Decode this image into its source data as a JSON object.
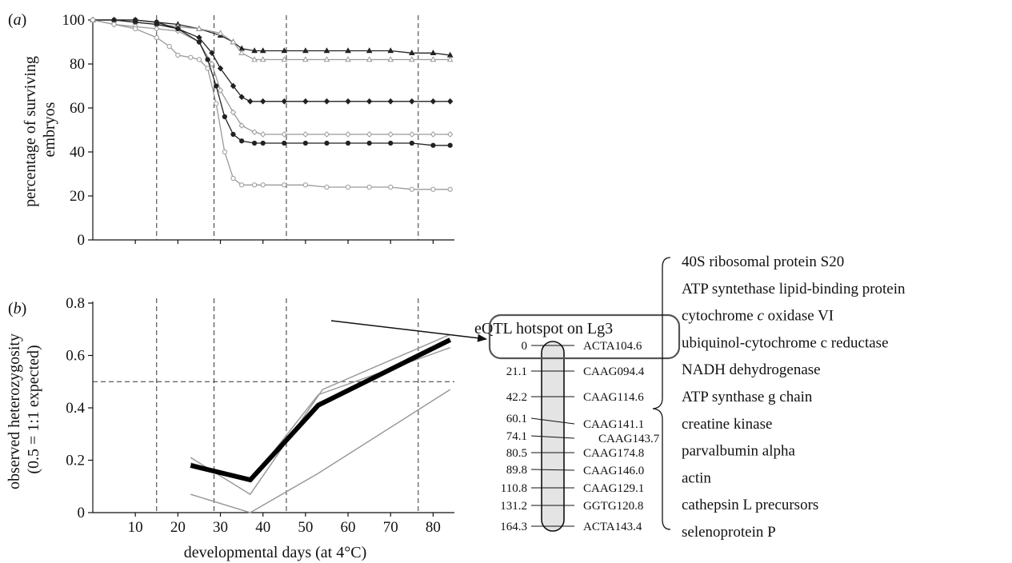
{
  "colors": {
    "axis": "#111111",
    "dark_series": "#222222",
    "light_series": "#9a9a9a",
    "grid": "#333333",
    "chromosome_fill": "#e4e4e4"
  },
  "chart_data": [
    {
      "id": "a",
      "panel_label": "(a)",
      "type": "line",
      "xlabel": "",
      "ylabel": "percentage of surviving embryos",
      "ylabel_lines": [
        "percentage of surviving",
        "embryos"
      ],
      "xlim": [
        0,
        85
      ],
      "ylim": [
        0,
        100
      ],
      "yticks": [
        "0",
        "20",
        "40",
        "60",
        "80",
        "100"
      ],
      "vlines": [
        15,
        28.5,
        45.5,
        76.5
      ],
      "grid": false,
      "series": [
        {
          "marker": "filled-triangle",
          "color": "dark",
          "x": [
            0,
            5,
            10,
            15,
            20,
            25,
            30,
            33,
            35,
            38,
            40,
            45,
            50,
            55,
            60,
            65,
            70,
            75,
            80,
            84
          ],
          "y": [
            100,
            100,
            100,
            99,
            98,
            96,
            93,
            90,
            87,
            86,
            86,
            86,
            86,
            86,
            86,
            86,
            86,
            85,
            85,
            84
          ]
        },
        {
          "marker": "open-triangle",
          "color": "light",
          "x": [
            0,
            5,
            10,
            15,
            20,
            25,
            30,
            33,
            35,
            38,
            40,
            45,
            50,
            55,
            60,
            65,
            70,
            75,
            80,
            84
          ],
          "y": [
            100,
            100,
            99,
            98,
            97,
            96,
            94,
            90,
            85,
            82,
            82,
            82,
            82,
            82,
            82,
            82,
            82,
            82,
            82,
            82
          ]
        },
        {
          "marker": "filled-diamond",
          "color": "dark",
          "x": [
            0,
            5,
            10,
            15,
            20,
            25,
            28,
            30,
            33,
            35,
            37,
            40,
            45,
            50,
            55,
            60,
            65,
            70,
            75,
            80,
            84
          ],
          "y": [
            100,
            100,
            99,
            98,
            96,
            92,
            85,
            78,
            70,
            65,
            63,
            63,
            63,
            63,
            63,
            63,
            63,
            63,
            63,
            63,
            63
          ]
        },
        {
          "marker": "open-diamond",
          "color": "light",
          "x": [
            0,
            5,
            10,
            15,
            20,
            25,
            28,
            30,
            33,
            35,
            38,
            40,
            45,
            50,
            55,
            60,
            65,
            70,
            75,
            80,
            84
          ],
          "y": [
            100,
            98,
            97,
            96,
            95,
            90,
            80,
            68,
            58,
            52,
            49,
            48,
            48,
            48,
            48,
            48,
            48,
            48,
            48,
            48,
            48
          ]
        },
        {
          "marker": "filled-circle",
          "color": "dark",
          "x": [
            0,
            5,
            10,
            15,
            20,
            25,
            27,
            29,
            31,
            33,
            35,
            38,
            40,
            45,
            50,
            55,
            60,
            65,
            70,
            75,
            80,
            84
          ],
          "y": [
            100,
            100,
            100,
            99,
            96,
            90,
            82,
            70,
            56,
            48,
            45,
            44,
            44,
            44,
            44,
            44,
            44,
            44,
            44,
            44,
            43,
            43
          ]
        },
        {
          "marker": "open-circle",
          "color": "light",
          "x": [
            0,
            5,
            10,
            15,
            18,
            20,
            23,
            25,
            27,
            29,
            31,
            33,
            35,
            38,
            40,
            45,
            50,
            55,
            60,
            65,
            70,
            75,
            80,
            84
          ],
          "y": [
            100,
            98,
            96,
            92,
            88,
            84,
            83,
            82,
            78,
            62,
            40,
            28,
            25,
            25,
            25,
            25,
            25,
            24,
            24,
            24,
            24,
            23,
            23,
            23
          ]
        }
      ]
    },
    {
      "id": "b",
      "panel_label": "(b)",
      "type": "line",
      "xlabel": "developmental days (at 4°C)",
      "ylabel": "observed heterozygosity (0.5 = 1:1 expected)",
      "ylabel_lines": [
        "observed heterozygosity",
        "(0.5 = 1:1 expected)"
      ],
      "xlim": [
        0,
        85
      ],
      "ylim": [
        0,
        0.8
      ],
      "xticks": [
        "10",
        "20",
        "30",
        "40",
        "50",
        "60",
        "70",
        "80"
      ],
      "yticks": [
        "0",
        "0.2",
        "0.4",
        "0.6",
        "0.8"
      ],
      "vlines": [
        15,
        28.5,
        45.5,
        76.5
      ],
      "hline": 0.5,
      "grid": false,
      "series": [
        {
          "style": "thin-grey",
          "x": [
            23,
            37,
            54,
            84
          ],
          "y": [
            0.21,
            0.07,
            0.47,
            0.68
          ]
        },
        {
          "style": "thin-grey",
          "x": [
            23,
            37,
            53,
            84
          ],
          "y": [
            0.19,
            0.12,
            0.45,
            0.63
          ]
        },
        {
          "style": "thin-grey",
          "x": [
            23,
            37,
            53,
            84
          ],
          "y": [
            0.07,
            0.0,
            0.15,
            0.47
          ]
        },
        {
          "style": "bold-black",
          "x": [
            23,
            37,
            53,
            84
          ],
          "y": [
            0.18,
            0.125,
            0.41,
            0.66
          ]
        }
      ]
    }
  ],
  "eqtl": {
    "title": "eQTL hotspot on Lg3",
    "markers": [
      {
        "pos": "0",
        "name": "ACTA104.6"
      },
      {
        "pos": "21.1",
        "name": "CAAG094.4"
      },
      {
        "pos": "42.2",
        "name": "CAAG114.6"
      },
      {
        "pos": "60.1",
        "name": "CAAG141.1"
      },
      {
        "pos": "74.1",
        "name": "CAAG143.7"
      },
      {
        "pos": "80.5",
        "name": "CAAG174.8"
      },
      {
        "pos": "89.8",
        "name": "CAAG146.0"
      },
      {
        "pos": "110.8",
        "name": "CAAG129.1"
      },
      {
        "pos": "131.2",
        "name": "GGTG120.8"
      },
      {
        "pos": "164.3",
        "name": "ACTA143.4"
      }
    ]
  },
  "genes": [
    "40S ribosomal protein S20",
    "ATP syntethase lipid-binding protein",
    "cytochrome c oxidase VI",
    "ubiquinol-cytochrome c reductase",
    "NADH dehydrogenase",
    "ATP synthase g chain",
    "creatine kinase",
    "parvalbumin alpha",
    "actin",
    "cathepsin L precursors",
    "selenoprotein P"
  ]
}
